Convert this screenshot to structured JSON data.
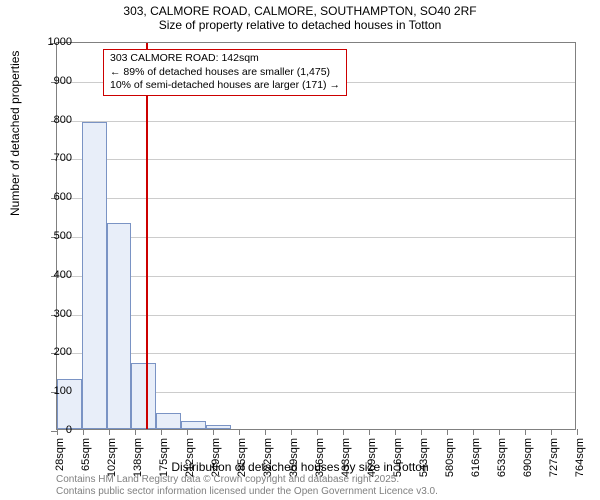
{
  "title_line1": "303, CALMORE ROAD, CALMORE, SOUTHAMPTON, SO40 2RF",
  "title_line2": "Size of property relative to detached houses in Totton",
  "y_axis_title": "Number of detached properties",
  "x_axis_title": "Distribution of detached houses by size in Totton",
  "footer_line1": "Contains HM Land Registry data © Crown copyright and database right 2025.",
  "footer_line2": "Contains public sector information licensed under the Open Government Licence v3.0.",
  "annotation": {
    "line1": "303 CALMORE ROAD: 142sqm",
    "line2": "← 89% of detached houses are smaller (1,475)",
    "line3": "10% of semi-detached houses are larger (171) →"
  },
  "chart": {
    "type": "histogram",
    "ylim": [
      0,
      1000
    ],
    "ytick_step": 100,
    "yticks": [
      0,
      100,
      200,
      300,
      400,
      500,
      600,
      700,
      800,
      900,
      1000
    ],
    "xticks": [
      "28sqm",
      "65sqm",
      "102sqm",
      "138sqm",
      "175sqm",
      "212sqm",
      "249sqm",
      "285sqm",
      "322sqm",
      "359sqm",
      "396sqm",
      "433sqm",
      "469sqm",
      "506sqm",
      "543sqm",
      "580sqm",
      "616sqm",
      "653sqm",
      "690sqm",
      "727sqm",
      "764sqm"
    ],
    "x_range": [
      10,
      782
    ],
    "bar_width_value": 36.8,
    "bars": [
      {
        "x_start": 10,
        "value": 130
      },
      {
        "x_start": 46.8,
        "value": 790
      },
      {
        "x_start": 83.6,
        "value": 530
      },
      {
        "x_start": 120.4,
        "value": 170
      },
      {
        "x_start": 157.2,
        "value": 40
      },
      {
        "x_start": 194.0,
        "value": 20
      },
      {
        "x_start": 230.8,
        "value": 10
      }
    ],
    "reference_line_x": 142,
    "bar_fill": "#e8eef9",
    "bar_stroke": "#7a93c4",
    "ref_line_color": "#cc0000",
    "grid_color": "#cccccc",
    "background_color": "#ffffff",
    "title_fontsize": 12,
    "label_fontsize": 11,
    "axis_title_fontsize": 12
  }
}
